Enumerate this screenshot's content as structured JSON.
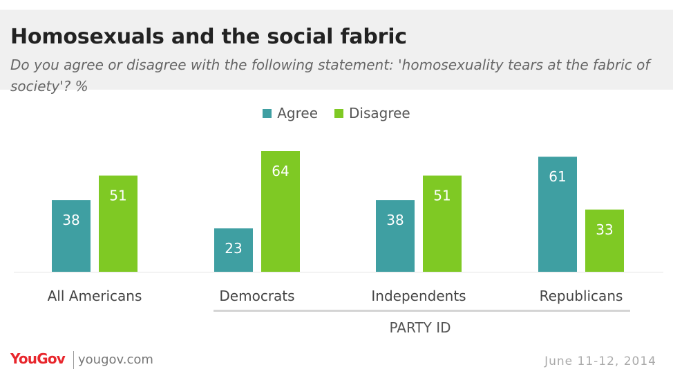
{
  "title": "Homosexuals and the social fabric",
  "subtitle": "Do you agree or disagree with the following statement: 'homosexuality tears at the fabric of society'? %",
  "footer": {
    "logo": "YouGov",
    "site": "yougov.com",
    "date": "June 11-12, 2014"
  },
  "colors": {
    "agree": "#3f9fa2",
    "disagree": "#7fc924"
  },
  "chart_data": {
    "type": "bar",
    "title": "Homosexuals and the social fabric",
    "categories": [
      "All Americans",
      "Democrats",
      "Independents",
      "Republicans"
    ],
    "series": [
      {
        "name": "Agree",
        "values": [
          38,
          23,
          38,
          61
        ]
      },
      {
        "name": "Disagree",
        "values": [
          51,
          64,
          51,
          33
        ]
      }
    ],
    "group_label": "PARTY ID",
    "ylim": [
      0,
      64
    ],
    "grid": false,
    "legend": "top-center",
    "data_labels": true
  }
}
